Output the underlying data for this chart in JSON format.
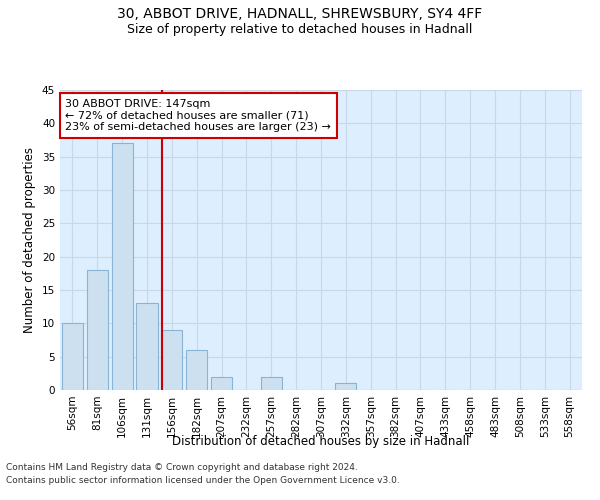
{
  "title_line1": "30, ABBOT DRIVE, HADNALL, SHREWSBURY, SY4 4FF",
  "title_line2": "Size of property relative to detached houses in Hadnall",
  "xlabel": "Distribution of detached houses by size in Hadnall",
  "ylabel": "Number of detached properties",
  "footnote1": "Contains HM Land Registry data © Crown copyright and database right 2024.",
  "footnote2": "Contains public sector information licensed under the Open Government Licence v3.0.",
  "bin_labels": [
    "56sqm",
    "81sqm",
    "106sqm",
    "131sqm",
    "156sqm",
    "182sqm",
    "207sqm",
    "232sqm",
    "257sqm",
    "282sqm",
    "307sqm",
    "332sqm",
    "357sqm",
    "382sqm",
    "407sqm",
    "433sqm",
    "458sqm",
    "483sqm",
    "508sqm",
    "533sqm",
    "558sqm"
  ],
  "bar_values": [
    10,
    18,
    37,
    13,
    9,
    6,
    2,
    0,
    2,
    0,
    0,
    1,
    0,
    0,
    0,
    0,
    0,
    0,
    0,
    0,
    0
  ],
  "bar_color": "#cce0f0",
  "bar_edge_color": "#8ab4d4",
  "grid_color": "#c8d8e8",
  "background_color": "#ddeeff",
  "red_line_x": 3.62,
  "annotation_text": "30 ABBOT DRIVE: 147sqm\n← 72% of detached houses are smaller (71)\n23% of semi-detached houses are larger (23) →",
  "annotation_box_color": "#ffffff",
  "annotation_box_edge_color": "#cc0000",
  "red_line_color": "#cc0000",
  "ylim": [
    0,
    45
  ],
  "yticks": [
    0,
    5,
    10,
    15,
    20,
    25,
    30,
    35,
    40,
    45
  ],
  "title_fontsize": 10,
  "subtitle_fontsize": 9,
  "axis_label_fontsize": 8.5,
  "tick_fontsize": 7.5,
  "annotation_fontsize": 8,
  "footnote_fontsize": 6.5
}
